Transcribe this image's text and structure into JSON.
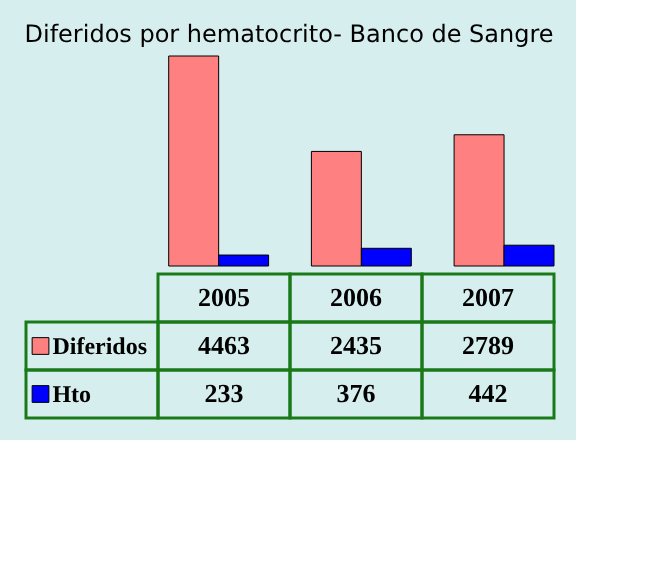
{
  "chart_data": {
    "type": "bar",
    "title": "Diferidos por hematocrito- Banco de Sangre",
    "categories": [
      "2005",
      "2006",
      "2007"
    ],
    "series": [
      {
        "name": "Diferidos",
        "color": "#ff8080",
        "values": [
          4463,
          2435,
          2789
        ]
      },
      {
        "name": "Hto",
        "color": "#0000ff",
        "values": [
          233,
          376,
          442
        ]
      }
    ],
    "data_labels": true,
    "legend": "bottom",
    "grid": false
  }
}
